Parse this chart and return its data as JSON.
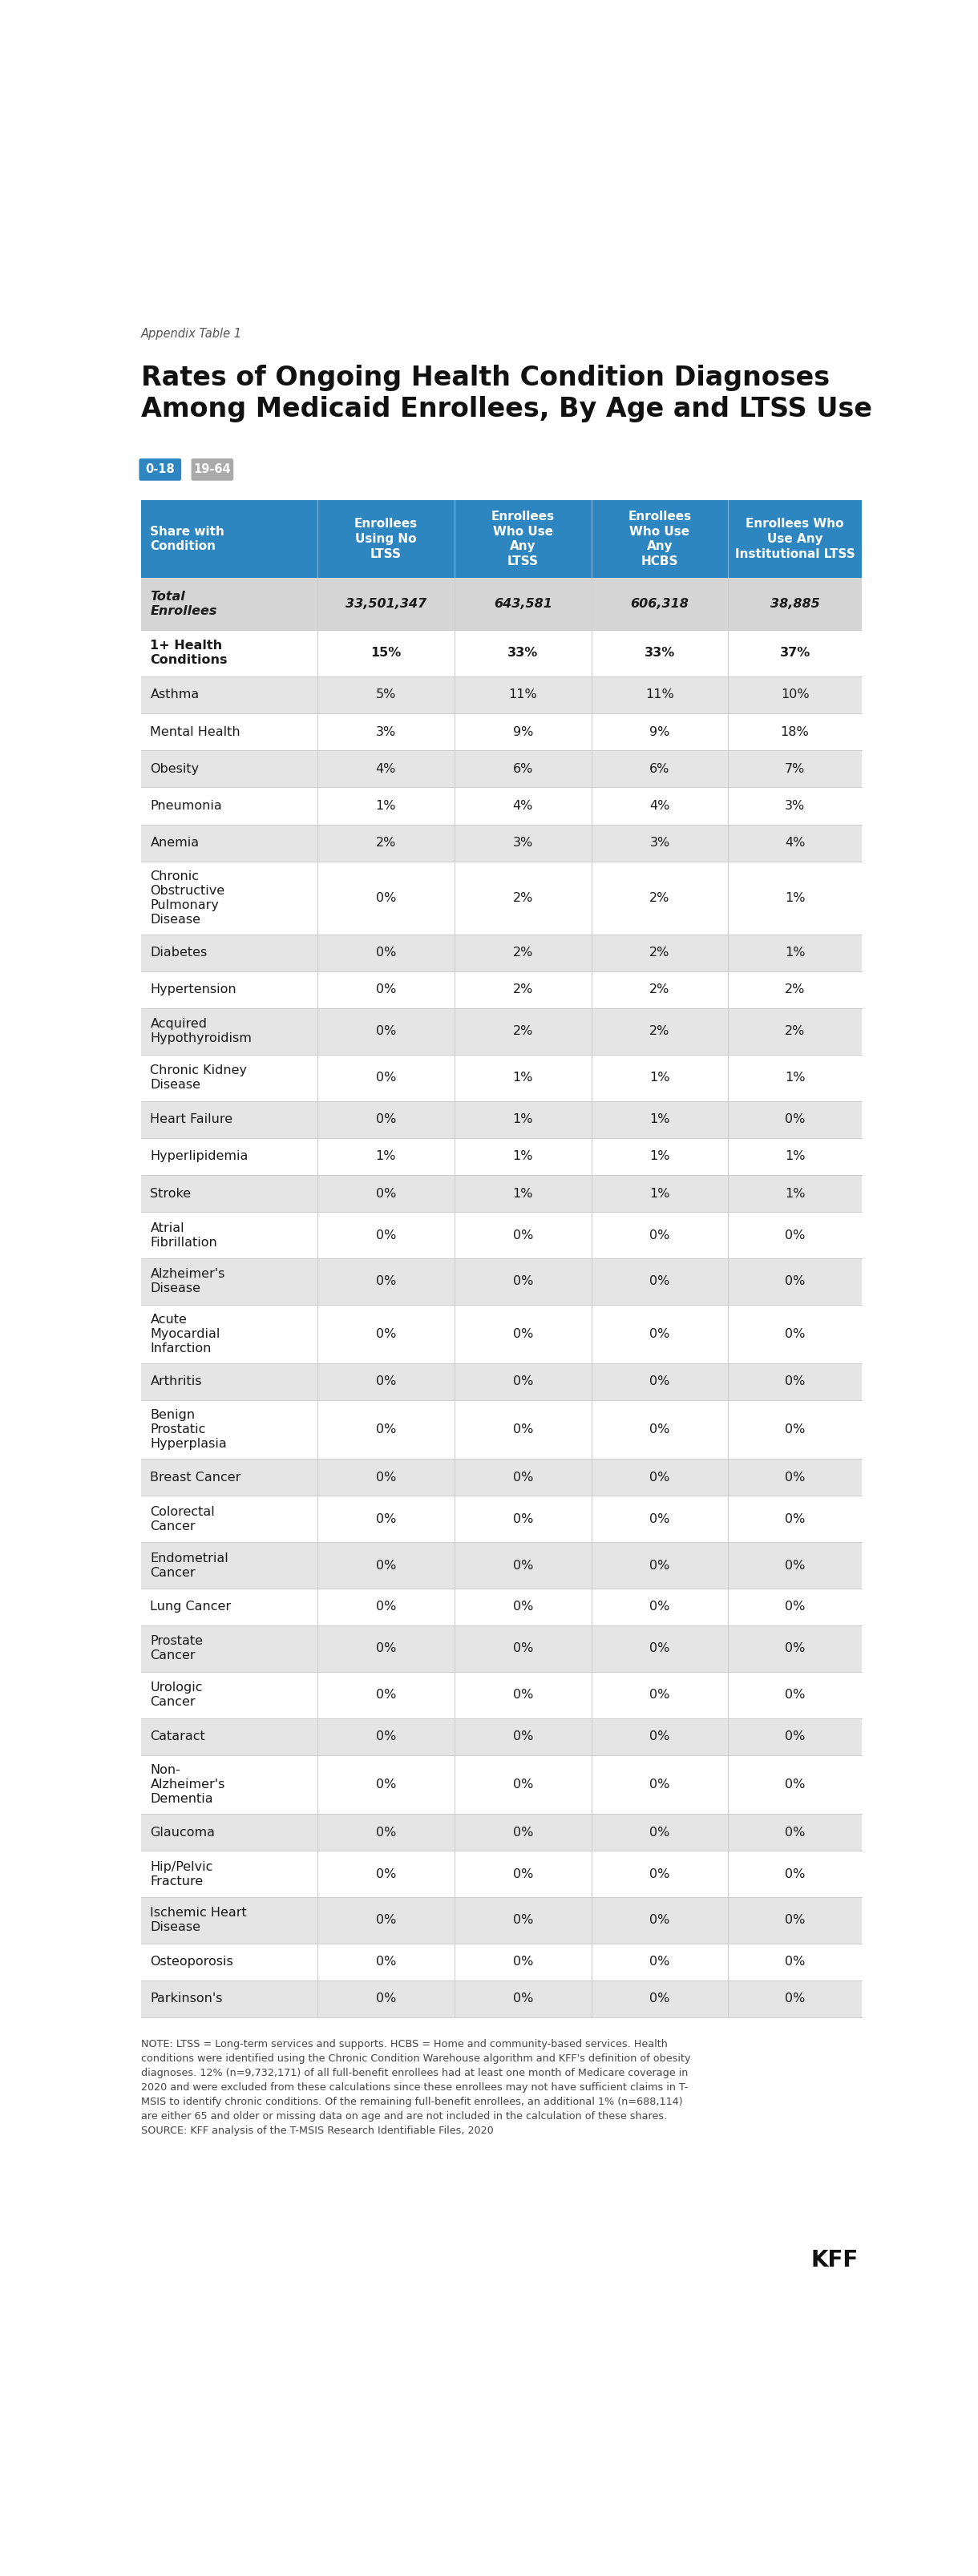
{
  "appendix_label": "Appendix Table 1",
  "title": "Rates of Ongoing Health Condition Diagnoses\nAmong Medicaid Enrollees, By Age and LTSS Use",
  "legend_items": [
    {
      "label": "0-18",
      "color": "#2E86C1"
    },
    {
      "label": "19-64",
      "color": "#AAAAAA"
    }
  ],
  "col_headers": [
    "Share with\nCondition",
    "Enrollees\nUsing No\nLTSS",
    "Enrollees\nWho Use\nAny\nLTSS",
    "Enrollees\nWho Use\nAny\nHCBS",
    "Enrollees Who\nUse Any\nInstitutional LTSS"
  ],
  "header_bg": "#2E86C1",
  "header_text_color": "#FFFFFF",
  "total_row": {
    "label": "Total\nEnrollees",
    "values": [
      "33,501,347",
      "643,581",
      "606,318",
      "38,885"
    ],
    "bold": true
  },
  "rows": [
    {
      "label": "1+ Health\nConditions",
      "values": [
        "15%",
        "33%",
        "33%",
        "37%"
      ],
      "shaded": false,
      "bold": true
    },
    {
      "label": "Asthma",
      "values": [
        "5%",
        "11%",
        "11%",
        "10%"
      ],
      "shaded": true,
      "bold": false
    },
    {
      "label": "Mental Health",
      "values": [
        "3%",
        "9%",
        "9%",
        "18%"
      ],
      "shaded": false,
      "bold": false
    },
    {
      "label": "Obesity",
      "values": [
        "4%",
        "6%",
        "6%",
        "7%"
      ],
      "shaded": true,
      "bold": false
    },
    {
      "label": "Pneumonia",
      "values": [
        "1%",
        "4%",
        "4%",
        "3%"
      ],
      "shaded": false,
      "bold": false
    },
    {
      "label": "Anemia",
      "values": [
        "2%",
        "3%",
        "3%",
        "4%"
      ],
      "shaded": true,
      "bold": false
    },
    {
      "label": "Chronic\nObstructive\nPulmonary\nDisease",
      "values": [
        "0%",
        "2%",
        "2%",
        "1%"
      ],
      "shaded": false,
      "bold": false
    },
    {
      "label": "Diabetes",
      "values": [
        "0%",
        "2%",
        "2%",
        "1%"
      ],
      "shaded": true,
      "bold": false
    },
    {
      "label": "Hypertension",
      "values": [
        "0%",
        "2%",
        "2%",
        "2%"
      ],
      "shaded": false,
      "bold": false
    },
    {
      "label": "Acquired\nHypothyroidism",
      "values": [
        "0%",
        "2%",
        "2%",
        "2%"
      ],
      "shaded": true,
      "bold": false
    },
    {
      "label": "Chronic Kidney\nDisease",
      "values": [
        "0%",
        "1%",
        "1%",
        "1%"
      ],
      "shaded": false,
      "bold": false
    },
    {
      "label": "Heart Failure",
      "values": [
        "0%",
        "1%",
        "1%",
        "0%"
      ],
      "shaded": true,
      "bold": false
    },
    {
      "label": "Hyperlipidemia",
      "values": [
        "1%",
        "1%",
        "1%",
        "1%"
      ],
      "shaded": false,
      "bold": false
    },
    {
      "label": "Stroke",
      "values": [
        "0%",
        "1%",
        "1%",
        "1%"
      ],
      "shaded": true,
      "bold": false
    },
    {
      "label": "Atrial\nFibrillation",
      "values": [
        "0%",
        "0%",
        "0%",
        "0%"
      ],
      "shaded": false,
      "bold": false
    },
    {
      "label": "Alzheimer's\nDisease",
      "values": [
        "0%",
        "0%",
        "0%",
        "0%"
      ],
      "shaded": true,
      "bold": false
    },
    {
      "label": "Acute\nMyocardial\nInfarction",
      "values": [
        "0%",
        "0%",
        "0%",
        "0%"
      ],
      "shaded": false,
      "bold": false
    },
    {
      "label": "Arthritis",
      "values": [
        "0%",
        "0%",
        "0%",
        "0%"
      ],
      "shaded": true,
      "bold": false
    },
    {
      "label": "Benign\nProstatic\nHyperplasia",
      "values": [
        "0%",
        "0%",
        "0%",
        "0%"
      ],
      "shaded": false,
      "bold": false
    },
    {
      "label": "Breast Cancer",
      "values": [
        "0%",
        "0%",
        "0%",
        "0%"
      ],
      "shaded": true,
      "bold": false
    },
    {
      "label": "Colorectal\nCancer",
      "values": [
        "0%",
        "0%",
        "0%",
        "0%"
      ],
      "shaded": false,
      "bold": false
    },
    {
      "label": "Endometrial\nCancer",
      "values": [
        "0%",
        "0%",
        "0%",
        "0%"
      ],
      "shaded": true,
      "bold": false
    },
    {
      "label": "Lung Cancer",
      "values": [
        "0%",
        "0%",
        "0%",
        "0%"
      ],
      "shaded": false,
      "bold": false
    },
    {
      "label": "Prostate\nCancer",
      "values": [
        "0%",
        "0%",
        "0%",
        "0%"
      ],
      "shaded": true,
      "bold": false
    },
    {
      "label": "Urologic\nCancer",
      "values": [
        "0%",
        "0%",
        "0%",
        "0%"
      ],
      "shaded": false,
      "bold": false
    },
    {
      "label": "Cataract",
      "values": [
        "0%",
        "0%",
        "0%",
        "0%"
      ],
      "shaded": true,
      "bold": false
    },
    {
      "label": "Non-\nAlzheimer's\nDementia",
      "values": [
        "0%",
        "0%",
        "0%",
        "0%"
      ],
      "shaded": false,
      "bold": false
    },
    {
      "label": "Glaucoma",
      "values": [
        "0%",
        "0%",
        "0%",
        "0%"
      ],
      "shaded": true,
      "bold": false
    },
    {
      "label": "Hip/Pelvic\nFracture",
      "values": [
        "0%",
        "0%",
        "0%",
        "0%"
      ],
      "shaded": false,
      "bold": false
    },
    {
      "label": "Ischemic Heart\nDisease",
      "values": [
        "0%",
        "0%",
        "0%",
        "0%"
      ],
      "shaded": true,
      "bold": false
    },
    {
      "label": "Osteoporosis",
      "values": [
        "0%",
        "0%",
        "0%",
        "0%"
      ],
      "shaded": false,
      "bold": false
    },
    {
      "label": "Parkinson's",
      "values": [
        "0%",
        "0%",
        "0%",
        "0%"
      ],
      "shaded": true,
      "bold": false
    }
  ],
  "footnote": "NOTE: LTSS = Long-term services and supports. HCBS = Home and community-based services. Health\nconditions were identified using the Chronic Condition Warehouse algorithm and KFF's definition of obesity\ndiagnoses. 12% (n=9,732,171) of all full-benefit enrollees had at least one month of Medicare coverage in\n2020 and were excluded from these calculations since these enrollees may not have sufficient claims in T-\nMSIS to identify chronic conditions. Of the remaining full-benefit enrollees, an additional 1% (n=688,114)\nare either 65 and older or missing data on age and are not included in the calculation of these shares.\nSOURCE: KFF analysis of the T-MSIS Research Identifiable Files, 2020",
  "bg_color": "#FFFFFF",
  "row_shaded_color": "#E5E5E5",
  "row_unshaded_color": "#FFFFFF",
  "text_color": "#1a1a1a",
  "divider_color": "#CCCCCC",
  "total_row_bg": "#D5D5D5"
}
